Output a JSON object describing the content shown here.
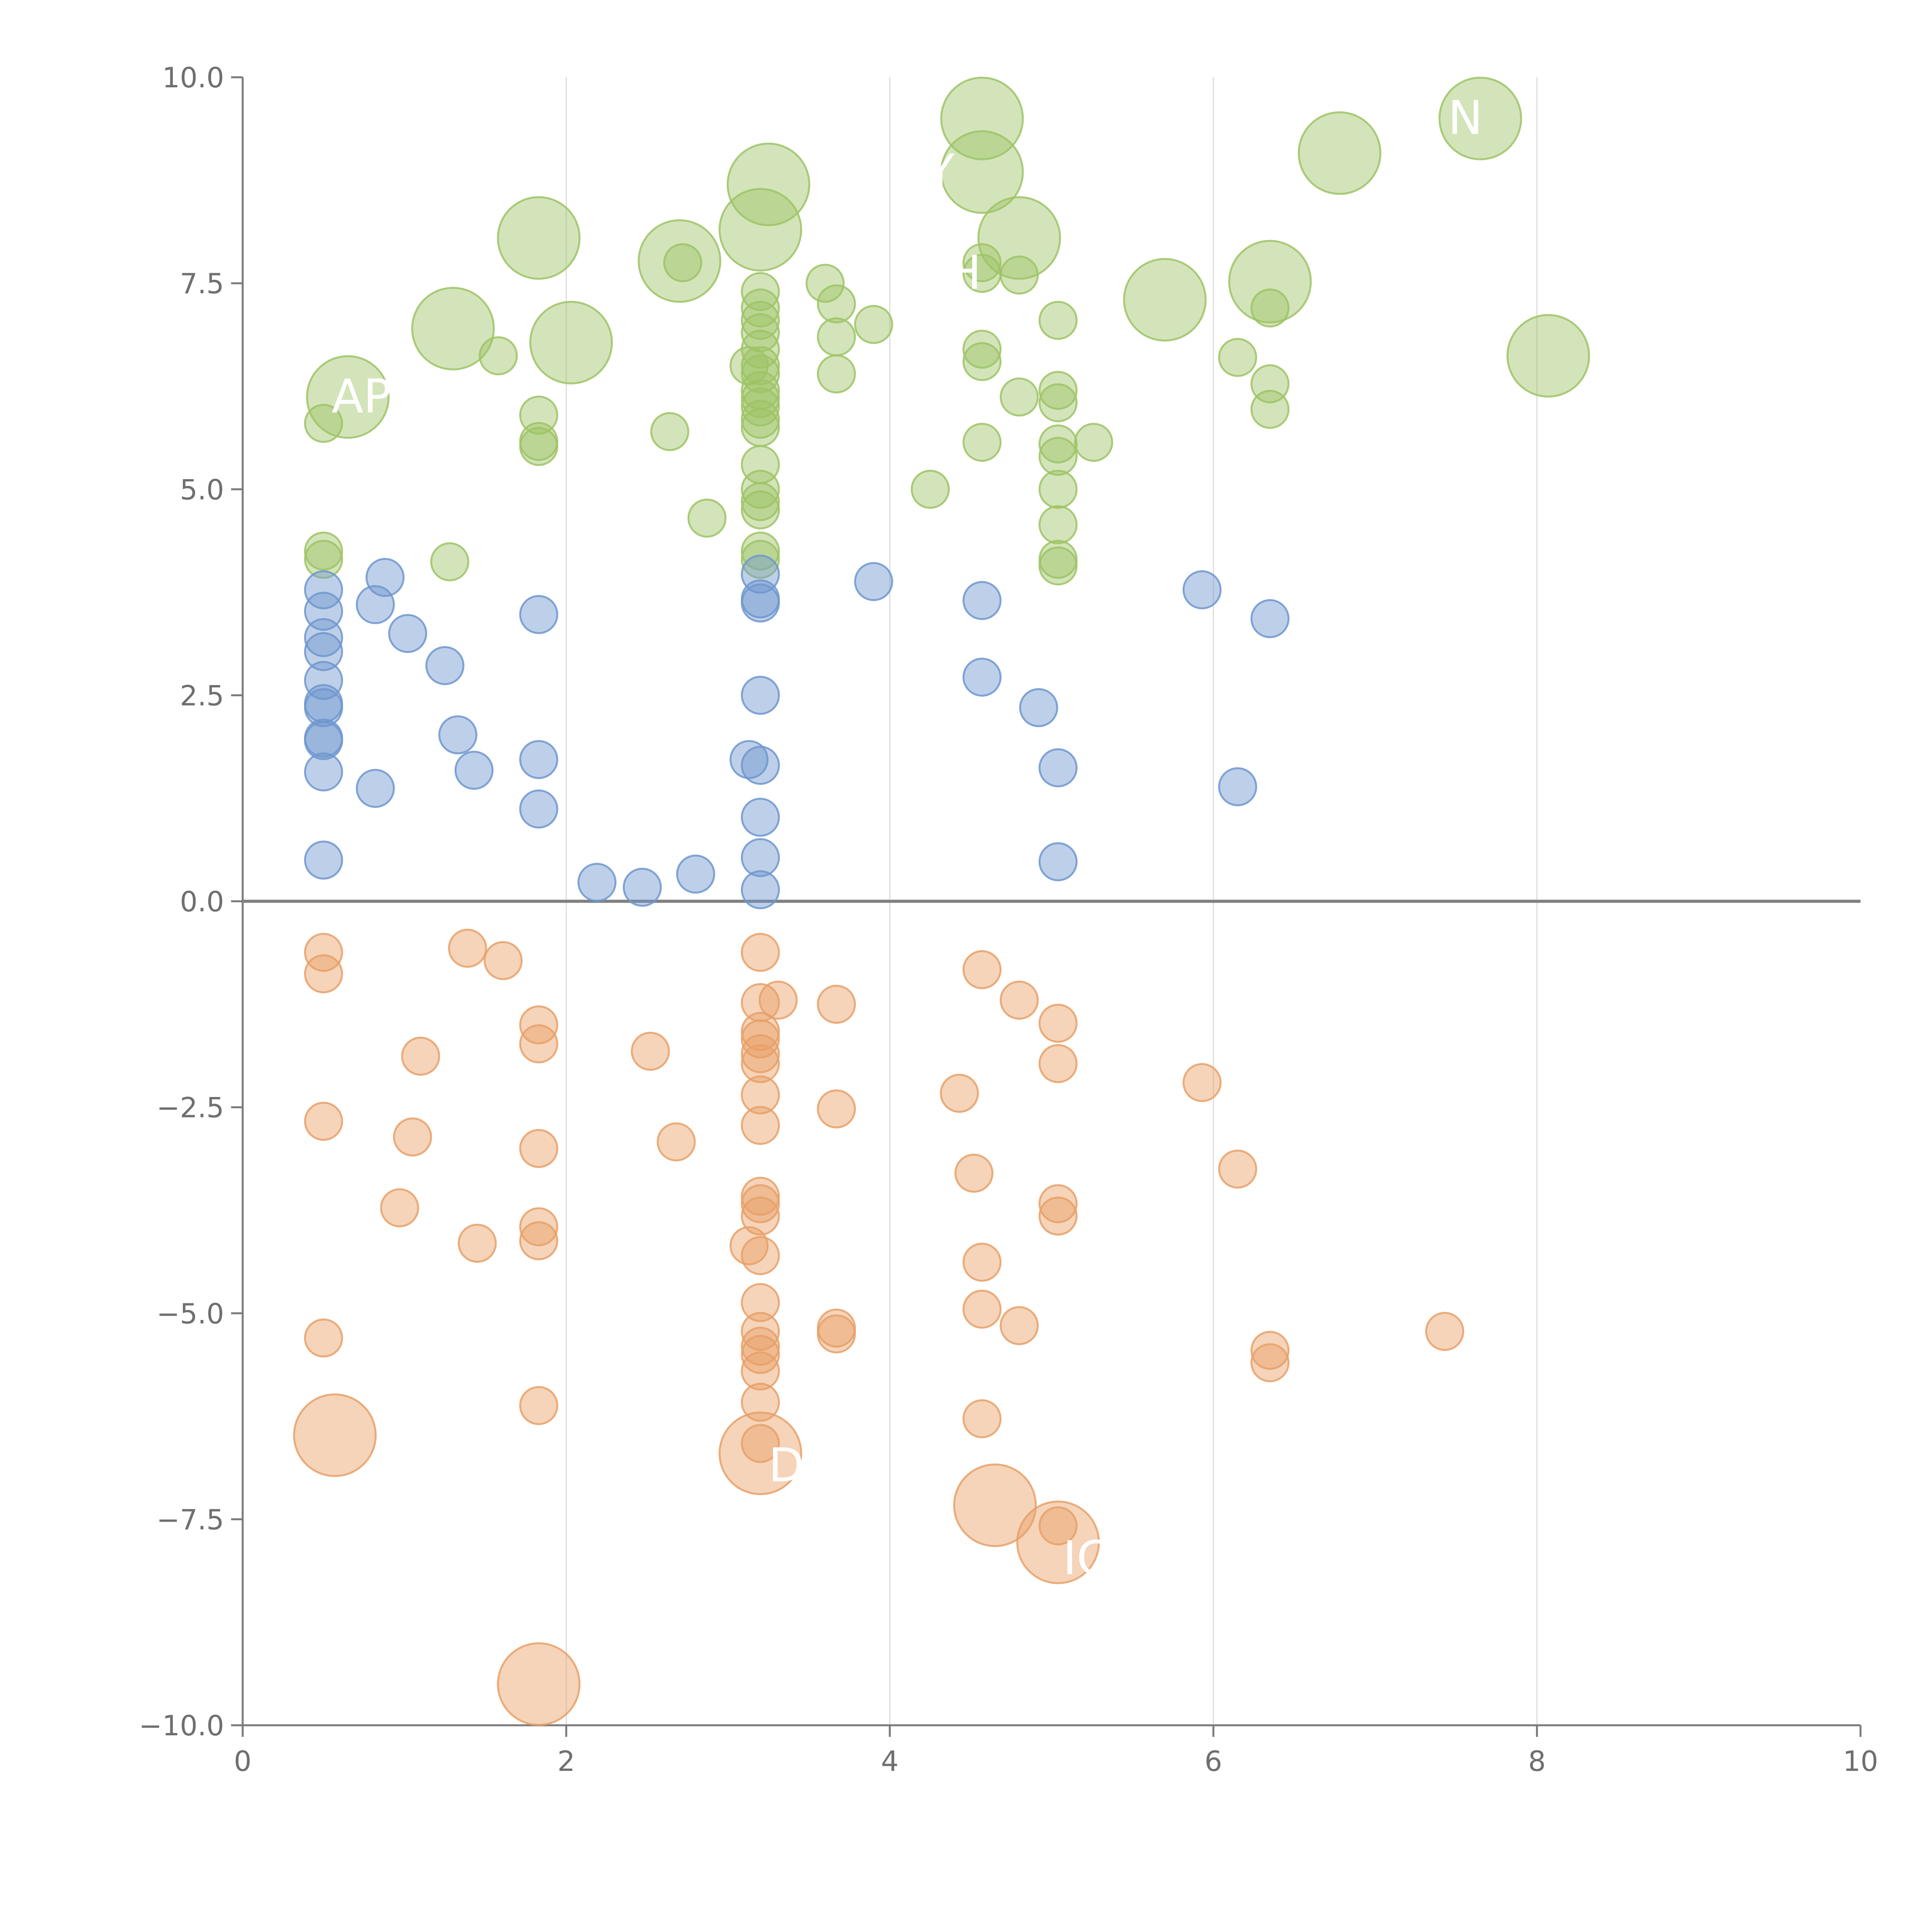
{
  "chart_data": {
    "type": "scatter",
    "title": "",
    "xlabel": "",
    "ylabel": "",
    "xlim": [
      0,
      10
    ],
    "ylim": [
      -10,
      10
    ],
    "grid": "vertical",
    "x_ticks": [
      {
        "value": 0,
        "label": "0"
      },
      {
        "value": 2,
        "label": "2"
      },
      {
        "value": 4,
        "label": "4"
      },
      {
        "value": 6,
        "label": "6"
      },
      {
        "value": 8,
        "label": "8"
      },
      {
        "value": 10,
        "label": "10"
      }
    ],
    "y_ticks": [
      {
        "value": 10,
        "label": "10.0"
      },
      {
        "value": 7.5,
        "label": "7.5"
      },
      {
        "value": 5,
        "label": "5.0"
      },
      {
        "value": 2.5,
        "label": "2.5"
      },
      {
        "value": 0,
        "label": "0.0"
      },
      {
        "value": -2.5,
        "label": "−2.5"
      },
      {
        "value": -5,
        "label": "−5.0"
      },
      {
        "value": -7.5,
        "label": "−7.5"
      },
      {
        "value": -10,
        "label": "−10.0"
      }
    ],
    "colors": {
      "green": "#9dc365",
      "blue": "#6e97cf",
      "orange": "#e8a067"
    },
    "bubble_sizes": {
      "small": 1,
      "large": 2.2
    },
    "series": [
      {
        "name": "green",
        "points": [
          [
            0.5,
            5.8,
            1
          ],
          [
            0.5,
            4.25,
            1
          ],
          [
            0.5,
            4.15,
            1
          ],
          [
            1.28,
            4.12,
            1
          ],
          [
            1.58,
            6.62,
            1
          ],
          [
            1.83,
            5.9,
            1
          ],
          [
            1.83,
            5.58,
            1
          ],
          [
            1.83,
            5.52,
            1
          ],
          [
            2.64,
            5.7,
            1
          ],
          [
            2.72,
            7.75,
            1
          ],
          [
            2.87,
            4.65,
            1
          ],
          [
            3.2,
            7.4,
            1
          ],
          [
            3.2,
            7.2,
            1
          ],
          [
            3.2,
            7.05,
            1
          ],
          [
            3.2,
            6.9,
            1
          ],
          [
            3.2,
            6.7,
            1
          ],
          [
            3.2,
            6.5,
            1
          ],
          [
            3.2,
            6.4,
            1
          ],
          [
            3.2,
            6.2,
            1
          ],
          [
            3.2,
            6.1,
            1
          ],
          [
            3.2,
            6.0,
            1
          ],
          [
            3.2,
            5.85,
            1
          ],
          [
            3.2,
            5.75,
            1
          ],
          [
            3.2,
            5.3,
            1
          ],
          [
            3.2,
            5.0,
            1
          ],
          [
            3.2,
            4.85,
            1
          ],
          [
            3.2,
            4.75,
            1
          ],
          [
            3.2,
            4.25,
            1
          ],
          [
            3.2,
            4.15,
            1
          ],
          [
            3.13,
            6.5,
            1
          ],
          [
            3.6,
            7.5,
            1
          ],
          [
            3.67,
            7.25,
            1
          ],
          [
            3.67,
            6.85,
            1
          ],
          [
            3.67,
            6.4,
            1
          ],
          [
            3.9,
            7.0,
            1
          ],
          [
            4.25,
            5.0,
            1
          ],
          [
            4.57,
            7.75,
            1
          ],
          [
            4.57,
            7.62,
            1
          ],
          [
            4.57,
            6.7,
            1
          ],
          [
            4.57,
            6.55,
            1
          ],
          [
            4.57,
            5.57,
            1
          ],
          [
            4.8,
            7.6,
            1
          ],
          [
            4.8,
            6.12,
            1
          ],
          [
            5.04,
            7.05,
            1
          ],
          [
            5.04,
            6.2,
            1
          ],
          [
            5.04,
            6.05,
            1
          ],
          [
            5.04,
            5.55,
            1
          ],
          [
            5.04,
            5.4,
            1
          ],
          [
            5.04,
            5.0,
            1
          ],
          [
            5.04,
            4.57,
            1
          ],
          [
            5.04,
            4.15,
            1
          ],
          [
            5.04,
            4.07,
            1
          ],
          [
            5.26,
            5.57,
            1
          ],
          [
            6.15,
            6.6,
            1
          ],
          [
            6.35,
            7.2,
            1
          ],
          [
            6.35,
            6.28,
            1
          ],
          [
            6.35,
            5.97,
            1
          ],
          [
            0.65,
            6.12,
            2.2
          ],
          [
            1.3,
            6.95,
            2.2
          ],
          [
            1.83,
            8.05,
            2.2
          ],
          [
            2.03,
            6.78,
            2.2
          ],
          [
            2.7,
            7.77,
            2.2
          ],
          [
            3.2,
            8.15,
            2.2
          ],
          [
            3.25,
            8.7,
            2.2
          ],
          [
            4.57,
            9.5,
            2.2
          ],
          [
            4.57,
            8.85,
            2.2
          ],
          [
            4.8,
            8.05,
            2.2
          ],
          [
            5.7,
            7.3,
            2.2
          ],
          [
            6.35,
            7.52,
            2.2
          ],
          [
            6.78,
            9.08,
            2.2
          ],
          [
            7.65,
            9.5,
            2.2
          ],
          [
            8.07,
            6.62,
            2.2
          ]
        ]
      },
      {
        "name": "blue",
        "points": [
          [
            0.5,
            3.78,
            1
          ],
          [
            0.5,
            3.52,
            1
          ],
          [
            0.5,
            3.2,
            1
          ],
          [
            0.5,
            3.03,
            1
          ],
          [
            0.5,
            2.68,
            1
          ],
          [
            0.5,
            2.4,
            1
          ],
          [
            0.5,
            2.35,
            1
          ],
          [
            0.5,
            1.98,
            1
          ],
          [
            0.5,
            1.95,
            1
          ],
          [
            0.5,
            1.57,
            1
          ],
          [
            0.5,
            0.5,
            1
          ],
          [
            0.82,
            1.37,
            1
          ],
          [
            0.82,
            3.6,
            1
          ],
          [
            0.88,
            3.93,
            1
          ],
          [
            1.02,
            3.25,
            1
          ],
          [
            1.25,
            2.86,
            1
          ],
          [
            1.33,
            2.02,
            1
          ],
          [
            1.43,
            1.59,
            1
          ],
          [
            1.83,
            3.48,
            1
          ],
          [
            1.83,
            1.72,
            1
          ],
          [
            1.83,
            1.12,
            1
          ],
          [
            2.19,
            0.23,
            1
          ],
          [
            2.47,
            0.17,
            1
          ],
          [
            2.8,
            0.33,
            1
          ],
          [
            3.13,
            1.72,
            1
          ],
          [
            3.2,
            3.97,
            1
          ],
          [
            3.2,
            3.67,
            1
          ],
          [
            3.2,
            3.62,
            1
          ],
          [
            3.2,
            2.5,
            1
          ],
          [
            3.2,
            1.65,
            1
          ],
          [
            3.2,
            1.02,
            1
          ],
          [
            3.2,
            0.53,
            1
          ],
          [
            3.2,
            0.14,
            1
          ],
          [
            3.9,
            3.88,
            1
          ],
          [
            4.57,
            3.65,
            1
          ],
          [
            4.57,
            2.72,
            1
          ],
          [
            4.92,
            2.35,
            1
          ],
          [
            5.04,
            1.62,
            1
          ],
          [
            5.04,
            0.48,
            1
          ],
          [
            5.93,
            3.78,
            1
          ],
          [
            6.15,
            1.39,
            1
          ],
          [
            6.35,
            3.43,
            1
          ]
        ]
      },
      {
        "name": "orange",
        "points": [
          [
            0.5,
            -0.62,
            1
          ],
          [
            0.5,
            -0.88,
            1
          ],
          [
            0.5,
            -2.67,
            1
          ],
          [
            0.5,
            -5.3,
            1
          ],
          [
            0.97,
            -3.72,
            1
          ],
          [
            1.05,
            -2.86,
            1
          ],
          [
            1.1,
            -1.88,
            1
          ],
          [
            1.39,
            -0.57,
            1
          ],
          [
            1.45,
            -4.15,
            1
          ],
          [
            1.61,
            -0.72,
            1
          ],
          [
            1.83,
            -1.5,
            1
          ],
          [
            1.83,
            -1.73,
            1
          ],
          [
            1.83,
            -3.0,
            1
          ],
          [
            1.83,
            -3.95,
            1
          ],
          [
            1.83,
            -4.12,
            1
          ],
          [
            1.83,
            -6.12,
            1
          ],
          [
            2.52,
            -1.82,
            1
          ],
          [
            2.68,
            -2.92,
            1
          ],
          [
            3.2,
            -0.62,
            1
          ],
          [
            3.2,
            -1.23,
            1
          ],
          [
            3.2,
            -1.58,
            1
          ],
          [
            3.2,
            -1.67,
            1
          ],
          [
            3.2,
            -1.85,
            1
          ],
          [
            3.2,
            -1.97,
            1
          ],
          [
            3.2,
            -2.35,
            1
          ],
          [
            3.2,
            -2.72,
            1
          ],
          [
            3.2,
            -3.58,
            1
          ],
          [
            3.2,
            -3.67,
            1
          ],
          [
            3.2,
            -3.82,
            1
          ],
          [
            3.13,
            -4.18,
            1
          ],
          [
            3.2,
            -4.3,
            1
          ],
          [
            3.2,
            -4.87,
            1
          ],
          [
            3.2,
            -5.22,
            1
          ],
          [
            3.2,
            -5.4,
            1
          ],
          [
            3.2,
            -5.5,
            1
          ],
          [
            3.2,
            -5.7,
            1
          ],
          [
            3.2,
            -6.08,
            1
          ],
          [
            3.2,
            -6.58,
            1
          ],
          [
            3.31,
            -1.2,
            1
          ],
          [
            3.67,
            -1.25,
            1
          ],
          [
            3.67,
            -2.52,
            1
          ],
          [
            3.67,
            -5.18,
            1
          ],
          [
            3.67,
            -5.25,
            1
          ],
          [
            4.43,
            -2.33,
            1
          ],
          [
            4.52,
            -3.3,
            1
          ],
          [
            4.57,
            -0.83,
            1
          ],
          [
            4.57,
            -4.38,
            1
          ],
          [
            4.57,
            -4.95,
            1
          ],
          [
            4.57,
            -6.28,
            1
          ],
          [
            4.8,
            -1.2,
            1
          ],
          [
            4.8,
            -5.15,
            1
          ],
          [
            5.04,
            -1.48,
            1
          ],
          [
            5.04,
            -1.97,
            1
          ],
          [
            5.04,
            -3.67,
            1
          ],
          [
            5.04,
            -3.82,
            1
          ],
          [
            5.04,
            -7.58,
            1
          ],
          [
            5.93,
            -2.2,
            1
          ],
          [
            6.15,
            -3.25,
            1
          ],
          [
            6.35,
            -5.45,
            1
          ],
          [
            6.35,
            -5.6,
            1
          ],
          [
            7.43,
            -5.22,
            1
          ],
          [
            0.57,
            -6.48,
            2.2
          ],
          [
            1.83,
            -9.5,
            2.2
          ],
          [
            3.2,
            -6.7,
            2.2
          ],
          [
            4.65,
            -7.33,
            2.2
          ],
          [
            5.04,
            -7.78,
            2.2
          ]
        ]
      }
    ],
    "bubble_labels": [
      {
        "text": "AP",
        "x": 0.55,
        "y": 6.12
      },
      {
        "text": "AY",
        "x": 4.05,
        "y": 8.85
      },
      {
        "text": "H",
        "x": 4.35,
        "y": 7.62
      },
      {
        "text": "N",
        "x": 7.45,
        "y": 9.5
      },
      {
        "text": "IC",
        "x": 5.07,
        "y": -7.98
      },
      {
        "text": "D",
        "x": 3.25,
        "y": -6.85
      }
    ]
  }
}
